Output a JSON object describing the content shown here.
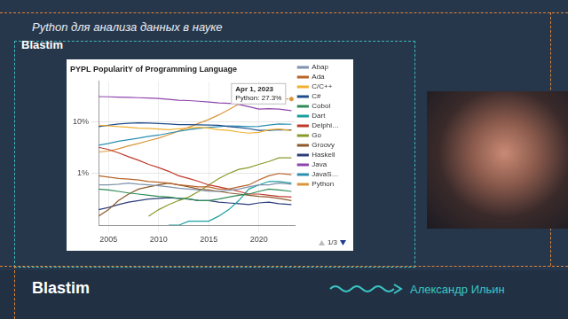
{
  "slide": {
    "title": "Python для анализа данных в науке",
    "logo": "Blastim",
    "speaker": "Александр Ильин"
  },
  "chart_data": {
    "type": "line",
    "title": "PYPL PopularitY of Programming Language",
    "log": "y",
    "grid": true,
    "legend": "right",
    "legend_page": "1/3",
    "x": [
      2004,
      2005,
      2006,
      2007,
      2008,
      2009,
      2010,
      2011,
      2012,
      2013,
      2014,
      2015,
      2016,
      2017,
      2018,
      2019,
      2020,
      2021,
      2022,
      2023.25
    ],
    "xlim": [
      2004,
      2023.6
    ],
    "xticks": [
      2005,
      2010,
      2015,
      2020
    ],
    "ylim": [
      0.1,
      60
    ],
    "yticks": [
      {
        "value": 1,
        "label": "1%"
      },
      {
        "value": 10,
        "label": "10%"
      }
    ],
    "annotation": {
      "title": "Apr 1, 2023",
      "text": "Python: 27.3%",
      "x": 2023.25,
      "y": 27.3,
      "color": "#d9963a"
    },
    "series": [
      {
        "name": "Abap",
        "color": "#7f93ad",
        "values": [
          0.6,
          0.6,
          0.62,
          0.65,
          0.62,
          0.6,
          0.58,
          0.55,
          0.52,
          0.5,
          0.48,
          0.45,
          0.45,
          0.47,
          0.5,
          0.55,
          0.6,
          0.6,
          0.65,
          0.62
        ]
      },
      {
        "name": "Ada",
        "color": "#b8642a",
        "values": [
          0.9,
          0.85,
          0.8,
          0.78,
          0.75,
          0.7,
          0.68,
          0.65,
          0.6,
          0.58,
          0.55,
          0.55,
          0.5,
          0.5,
          0.55,
          0.6,
          0.75,
          0.9,
          1.0,
          0.95
        ]
      },
      {
        "name": "C/C++",
        "color": "#f0b030",
        "values": [
          8.5,
          8.3,
          8.0,
          7.8,
          7.5,
          7.4,
          7.2,
          7.0,
          7.3,
          7.5,
          7.8,
          7.5,
          7.0,
          6.8,
          6.3,
          6.0,
          6.2,
          7.0,
          7.2,
          6.7
        ]
      },
      {
        "name": "C#",
        "color": "#1f4e8c",
        "values": [
          8.0,
          8.5,
          9.0,
          9.3,
          9.5,
          9.4,
          9.2,
          9.0,
          8.8,
          8.8,
          8.7,
          8.6,
          8.5,
          8.0,
          7.7,
          7.3,
          6.8,
          6.8,
          7.0,
          6.9
        ]
      },
      {
        "name": "Cobol",
        "color": "#2e8b57",
        "values": [
          0.5,
          0.48,
          0.45,
          0.42,
          0.4,
          0.38,
          0.36,
          0.35,
          0.33,
          0.32,
          0.3,
          0.3,
          0.32,
          0.35,
          0.38,
          0.4,
          0.45,
          0.5,
          0.48,
          0.45
        ]
      },
      {
        "name": "Dart",
        "color": "#1b9e9e",
        "values": [
          null,
          null,
          null,
          null,
          null,
          null,
          null,
          0.1,
          0.1,
          0.12,
          0.12,
          0.12,
          0.15,
          0.2,
          0.3,
          0.5,
          0.6,
          0.7,
          0.7,
          0.65
        ]
      },
      {
        "name": "Delphi…",
        "color": "#c0392b",
        "values": [
          3.2,
          2.9,
          2.5,
          2.1,
          1.8,
          1.5,
          1.3,
          1.1,
          0.9,
          0.8,
          0.7,
          0.6,
          0.55,
          0.5,
          0.45,
          0.4,
          0.4,
          0.38,
          0.36,
          0.35
        ]
      },
      {
        "name": "Go",
        "color": "#8a9a2b",
        "values": [
          null,
          null,
          null,
          null,
          null,
          0.15,
          0.2,
          0.25,
          0.3,
          0.35,
          0.45,
          0.6,
          0.8,
          1.0,
          1.2,
          1.3,
          1.5,
          1.7,
          2.0,
          2.0
        ]
      },
      {
        "name": "Groovy",
        "color": "#8b5a2b",
        "values": [
          0.15,
          0.2,
          0.3,
          0.4,
          0.5,
          0.55,
          0.6,
          0.65,
          0.6,
          0.55,
          0.5,
          0.48,
          0.45,
          0.42,
          0.4,
          0.38,
          0.36,
          0.35,
          0.33,
          0.3
        ]
      },
      {
        "name": "Haskell",
        "color": "#2c3e7a",
        "values": [
          0.2,
          0.22,
          0.25,
          0.28,
          0.3,
          0.32,
          0.33,
          0.34,
          0.33,
          0.32,
          0.3,
          0.3,
          0.28,
          0.27,
          0.26,
          0.25,
          0.27,
          0.28,
          0.26,
          0.25
        ]
      },
      {
        "name": "Java",
        "color": "#8e44ad",
        "values": [
          30.5,
          30.2,
          29.8,
          29.5,
          29.0,
          28.5,
          28.0,
          27.0,
          26.0,
          25.5,
          24.8,
          24.0,
          23.0,
          22.5,
          21.5,
          19.5,
          17.5,
          17.8,
          17.5,
          16.3
        ]
      },
      {
        "name": "JavaS…",
        "color": "#2a8fb0",
        "values": [
          3.5,
          3.8,
          4.2,
          4.5,
          4.8,
          5.2,
          5.5,
          6.0,
          6.5,
          7.0,
          7.4,
          7.7,
          8.0,
          8.3,
          8.2,
          8.0,
          8.1,
          8.6,
          9.0,
          8.9
        ]
      },
      {
        "name": "Python",
        "color": "#d9963a",
        "values": [
          2.6,
          2.7,
          3.0,
          3.4,
          3.8,
          4.3,
          4.8,
          5.6,
          6.6,
          7.8,
          9.3,
          11.0,
          13.5,
          17.0,
          22.0,
          27.0,
          30.5,
          29.5,
          28.0,
          27.3
        ]
      }
    ]
  }
}
